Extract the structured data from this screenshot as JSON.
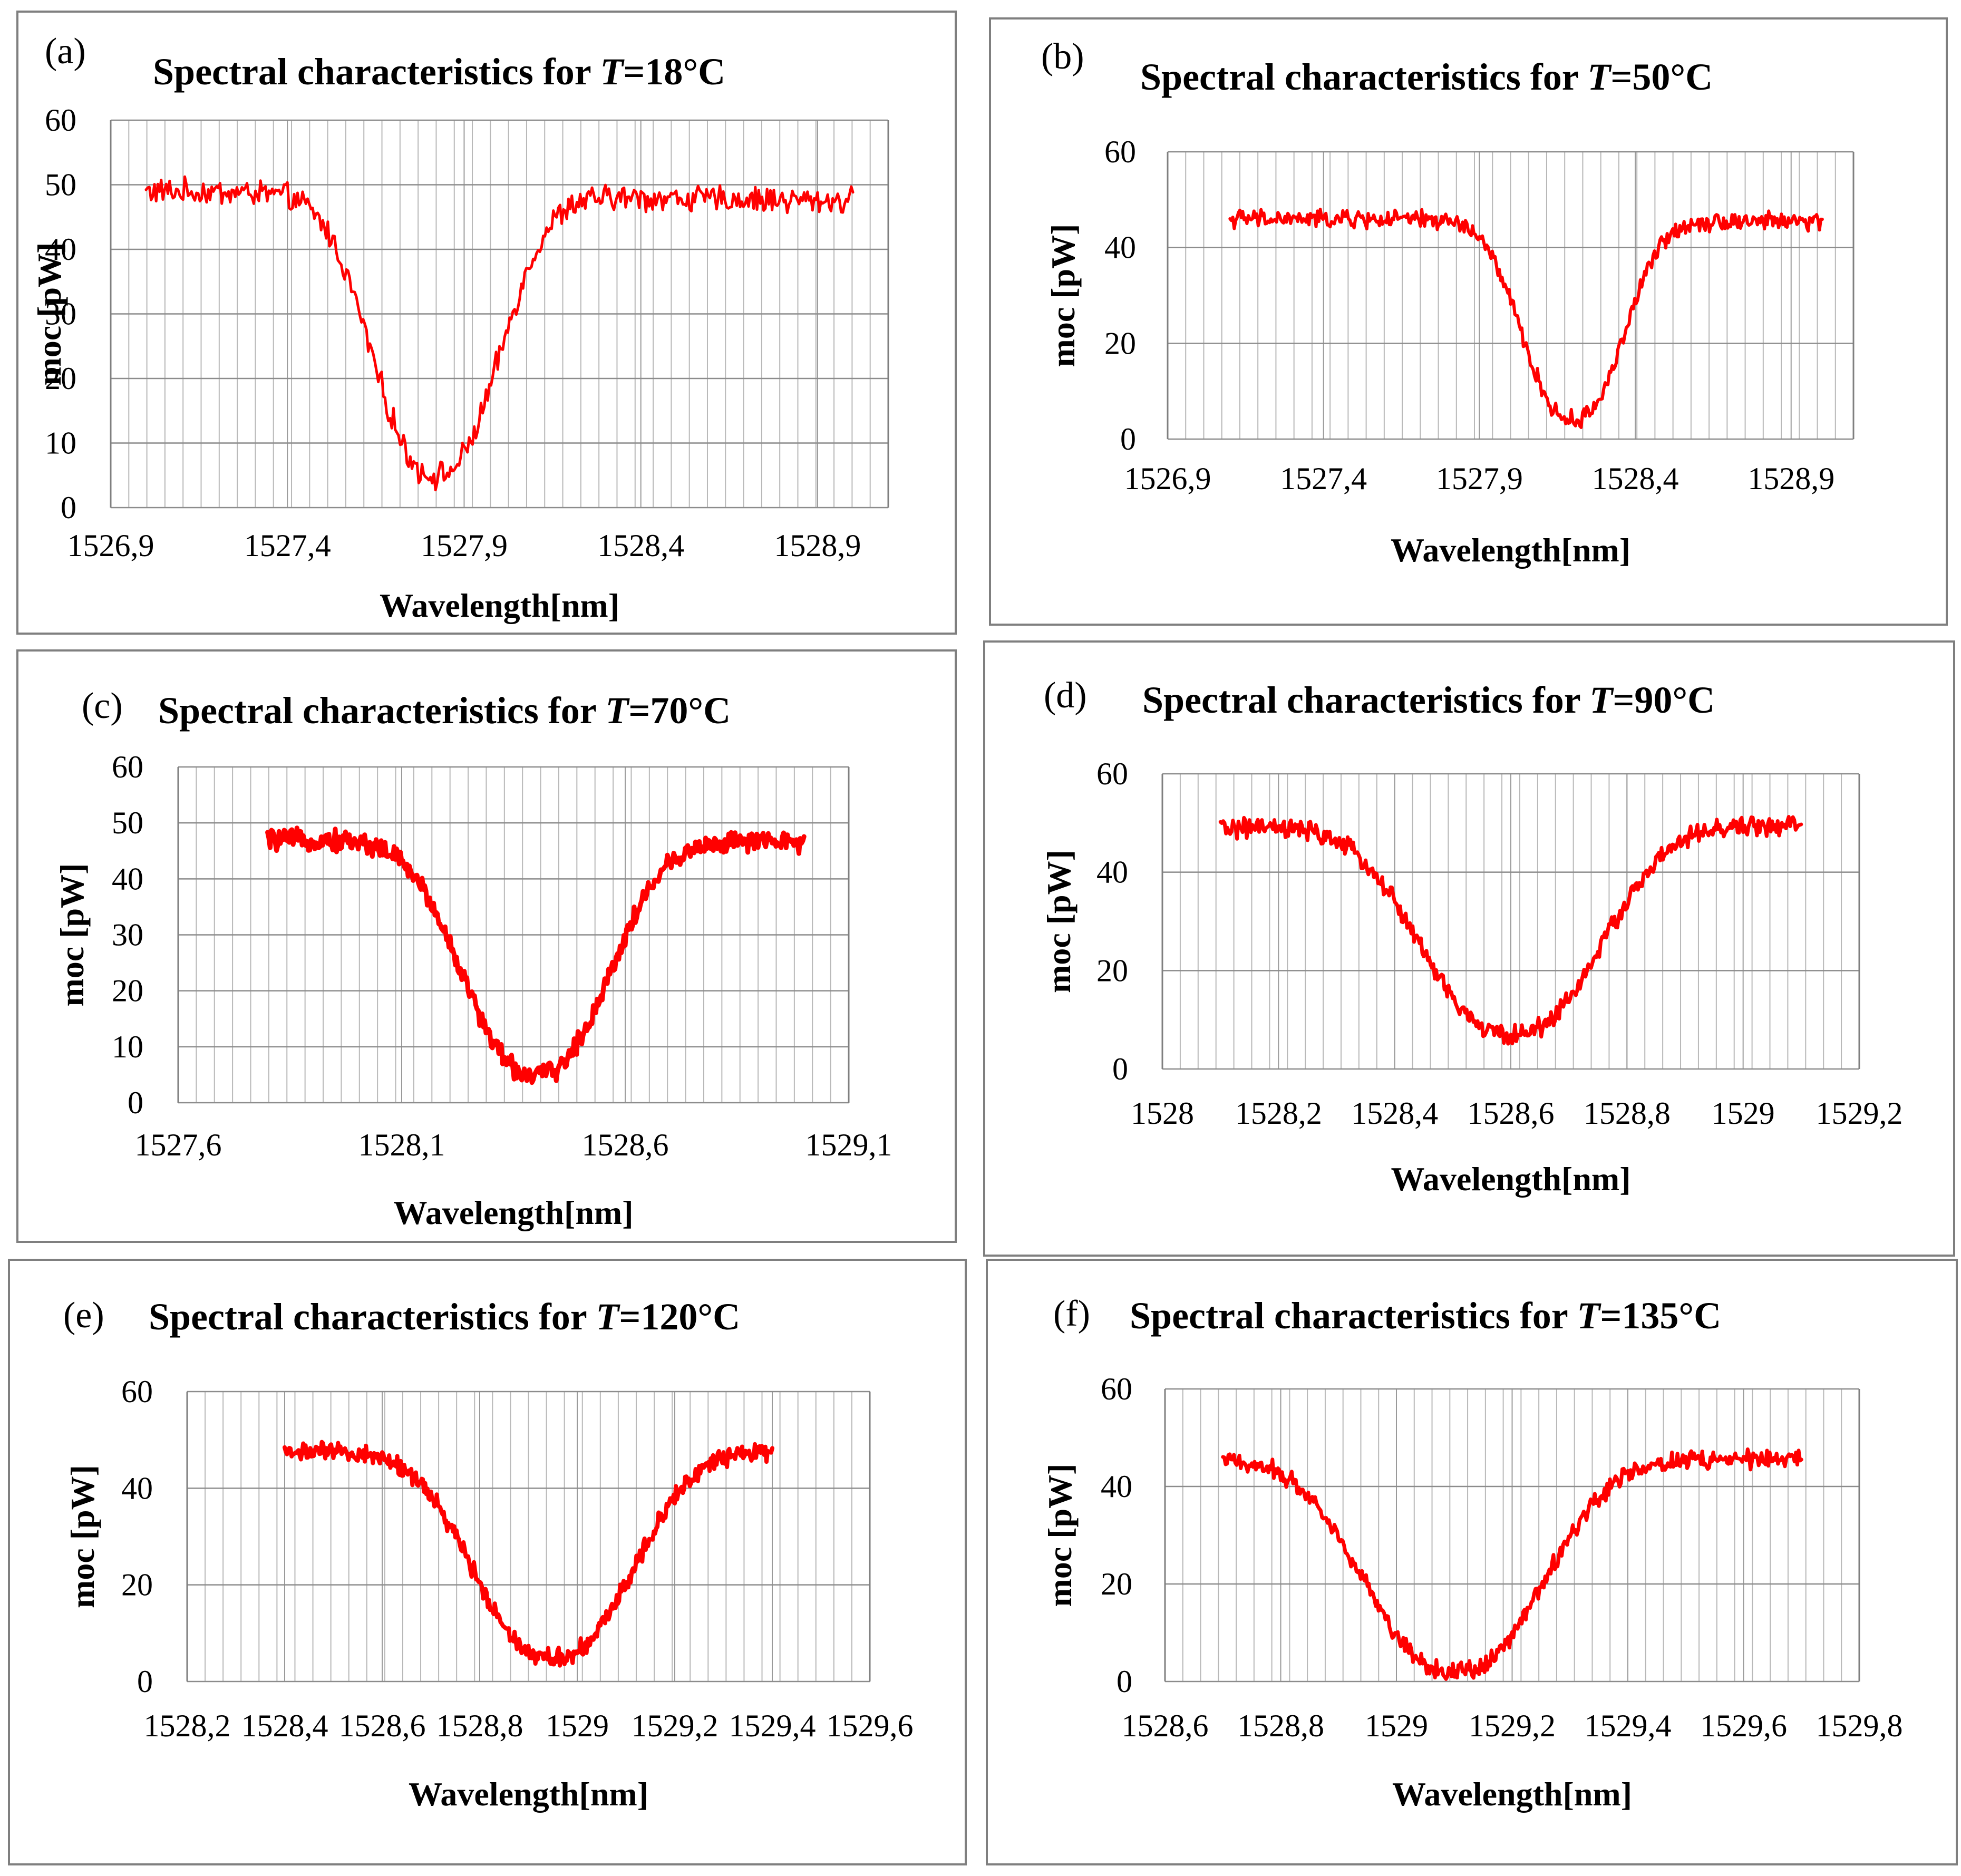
{
  "figure": {
    "series_color": "#ff0000"
  },
  "chart_data": [
    {
      "panel": "(a)",
      "title_prefix": "Spectral characteristics for ",
      "title_var": "T",
      "title_suffix": "=18°C",
      "type": "line",
      "xlabel": "Wavelength[nm]",
      "ylabel": "moc [pW]",
      "xlim": [
        1526.9,
        1529.1
      ],
      "ylim": [
        0,
        60
      ],
      "x_ticks": [
        1526.9,
        1527.4,
        1527.9,
        1528.4,
        1528.9
      ],
      "x_tick_labels": [
        "1526,9",
        "1527,4",
        "1527,9",
        "1528,4",
        "1528,9"
      ],
      "y_ticks": [
        0,
        10,
        20,
        30,
        40,
        50,
        60
      ],
      "y_tick_labels": [
        "0",
        "10",
        "20",
        "30",
        "40",
        "50",
        "60"
      ],
      "series": [
        {
          "name": "T=18°C",
          "x_start": 1527.0,
          "x_end": 1529.0,
          "baseline_left": 49,
          "baseline_right": 47.5,
          "center": 1527.82,
          "min": 5,
          "half_width": 0.22,
          "noise": 1.6
        }
      ]
    },
    {
      "panel": "(b)",
      "title_prefix": "Spectral characteristics for ",
      "title_var": "T",
      "title_suffix": "=50°C",
      "type": "line",
      "xlabel": "Wavelength[nm]",
      "ylabel": "moc [pW]",
      "xlim": [
        1526.9,
        1529.1
      ],
      "ylim": [
        0,
        60
      ],
      "x_ticks": [
        1526.9,
        1527.4,
        1527.9,
        1528.4,
        1528.9
      ],
      "x_tick_labels": [
        "1526,9",
        "1527,4",
        "1527,9",
        "1528,4",
        "1528,9"
      ],
      "y_ticks": [
        0,
        20,
        40,
        60
      ],
      "y_tick_labels": [
        "0",
        "20",
        "40",
        "60"
      ],
      "series": [
        {
          "name": "T=50°C",
          "x_start": 1527.1,
          "x_end": 1529.0,
          "baseline_left": 46,
          "baseline_right": 45.5,
          "center": 1528.2,
          "min": 4,
          "half_width": 0.2,
          "noise": 1.5
        }
      ]
    },
    {
      "panel": "(c)",
      "title_prefix": "Spectral characteristics for ",
      "title_var": "T",
      "title_suffix": "=70°C",
      "type": "line",
      "xlabel": "Wavelength[nm]",
      "ylabel": "moc [pW]",
      "xlim": [
        1527.6,
        1529.1
      ],
      "ylim": [
        0,
        60
      ],
      "x_ticks": [
        1527.6,
        1528.1,
        1528.6,
        1529.1
      ],
      "x_tick_labels": [
        "1527,6",
        "1528,1",
        "1528,6",
        "1529,1"
      ],
      "y_ticks": [
        0,
        10,
        20,
        30,
        40,
        50,
        60
      ],
      "y_tick_labels": [
        "0",
        "10",
        "20",
        "30",
        "40",
        "50",
        "60"
      ],
      "series": [
        {
          "name": "T=70°C",
          "x_start": 1527.8,
          "x_end": 1529.0,
          "baseline_left": 47,
          "baseline_right": 46.5,
          "center": 1528.4,
          "min": 5,
          "half_width": 0.2,
          "noise": 1.5
        }
      ]
    },
    {
      "panel": "(d)",
      "title_prefix": "Spectral characteristics for ",
      "title_var": "T",
      "title_suffix": "=90°C",
      "type": "line",
      "xlabel": "Wavelength[nm]",
      "ylabel": "moc [pW]",
      "xlim": [
        1528.0,
        1529.2
      ],
      "ylim": [
        0,
        60
      ],
      "x_ticks": [
        1528.0,
        1528.2,
        1528.4,
        1528.6,
        1528.8,
        1529.0,
        1529.2
      ],
      "x_tick_labels": [
        "1528",
        "1528,2",
        "1528,4",
        "1528,6",
        "1528,8",
        "1529",
        "1529,2"
      ],
      "y_ticks": [
        0,
        20,
        40,
        60
      ],
      "y_tick_labels": [
        "0",
        "20",
        "40",
        "60"
      ],
      "series": [
        {
          "name": "T=90°C",
          "x_start": 1528.1,
          "x_end": 1529.1,
          "baseline_left": 49,
          "baseline_right": 49.5,
          "center": 1528.6,
          "min": 7,
          "half_width": 0.19,
          "noise": 1.6
        }
      ]
    },
    {
      "panel": "(e)",
      "title_prefix": "Spectral characteristics for ",
      "title_var": "T",
      "title_suffix": "=120°C",
      "type": "line",
      "xlabel": "Wavelength[nm]",
      "ylabel": "moc [pW]",
      "xlim": [
        1528.2,
        1529.6
      ],
      "ylim": [
        0,
        60
      ],
      "x_ticks": [
        1528.2,
        1528.4,
        1528.6,
        1528.8,
        1529.0,
        1529.2,
        1529.4,
        1529.6
      ],
      "x_tick_labels": [
        "1528,2",
        "1528,4",
        "1528,6",
        "1528,8",
        "1529",
        "1529,2",
        "1529,4",
        "1529,6"
      ],
      "y_ticks": [
        0,
        20,
        40,
        60
      ],
      "y_tick_labels": [
        "0",
        "20",
        "40",
        "60"
      ],
      "series": [
        {
          "name": "T=120°C",
          "x_start": 1528.4,
          "x_end": 1529.4,
          "baseline_left": 47.5,
          "baseline_right": 47.5,
          "center": 1528.95,
          "min": 5,
          "half_width": 0.2,
          "noise": 1.5
        }
      ]
    },
    {
      "panel": "(f)",
      "title_prefix": "Spectral characteristics for ",
      "title_var": "T",
      "title_suffix": "=135°C",
      "type": "line",
      "xlabel": "Wavelength[nm]",
      "ylabel": "moc [pW]",
      "xlim": [
        1528.6,
        1529.8
      ],
      "ylim": [
        0,
        60
      ],
      "x_ticks": [
        1528.6,
        1528.8,
        1529.0,
        1529.2,
        1529.4,
        1529.6,
        1529.8
      ],
      "x_tick_labels": [
        "1528,6",
        "1528,8",
        "1529",
        "1529,2",
        "1529,4",
        "1529,6",
        "1529,8"
      ],
      "y_ticks": [
        0,
        20,
        40,
        60
      ],
      "y_tick_labels": [
        "0",
        "20",
        "40",
        "60"
      ],
      "series": [
        {
          "name": "T=135°C",
          "x_start": 1528.7,
          "x_end": 1529.7,
          "baseline_left": 45.5,
          "baseline_right": 45.5,
          "center": 1529.1,
          "min": 2,
          "half_width": 0.19,
          "noise": 1.5
        }
      ]
    }
  ]
}
